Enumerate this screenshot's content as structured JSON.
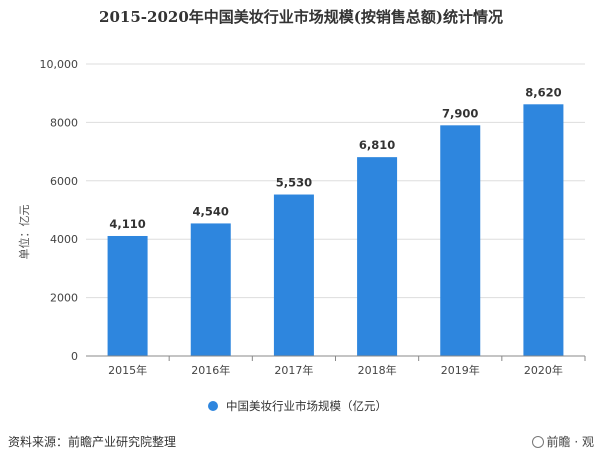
{
  "title": "2015-2020年中国美妆行业市场规模(按销售总额)统计情况",
  "source": "资料来源：前瞻产业研究院整理",
  "watermark": "前瞻 · 观",
  "colors": {
    "bar": "#2e86de",
    "grid": "#dddddd",
    "axis": "#888888"
  },
  "chart_data": {
    "type": "bar",
    "categories": [
      "2015年",
      "2016年",
      "2017年",
      "2018年",
      "2019年",
      "2020年"
    ],
    "series": [
      {
        "name": "中国美妆行业市场规模（亿元）",
        "values": [
          4110,
          4540,
          5530,
          6810,
          7900,
          8620
        ]
      }
    ],
    "data_labels": [
      "4,110",
      "4,540",
      "5,530",
      "6,810",
      "7,900",
      "8,620"
    ],
    "ylabel": "单位：亿元",
    "ylim": [
      0,
      10000
    ],
    "yticks": [
      0,
      2000,
      4000,
      6000,
      8000,
      10000
    ],
    "ytick_labels": [
      "0",
      "2000",
      "4000",
      "6000",
      "8000",
      "10,000"
    ],
    "grid": true,
    "legend_position": "bottom"
  }
}
